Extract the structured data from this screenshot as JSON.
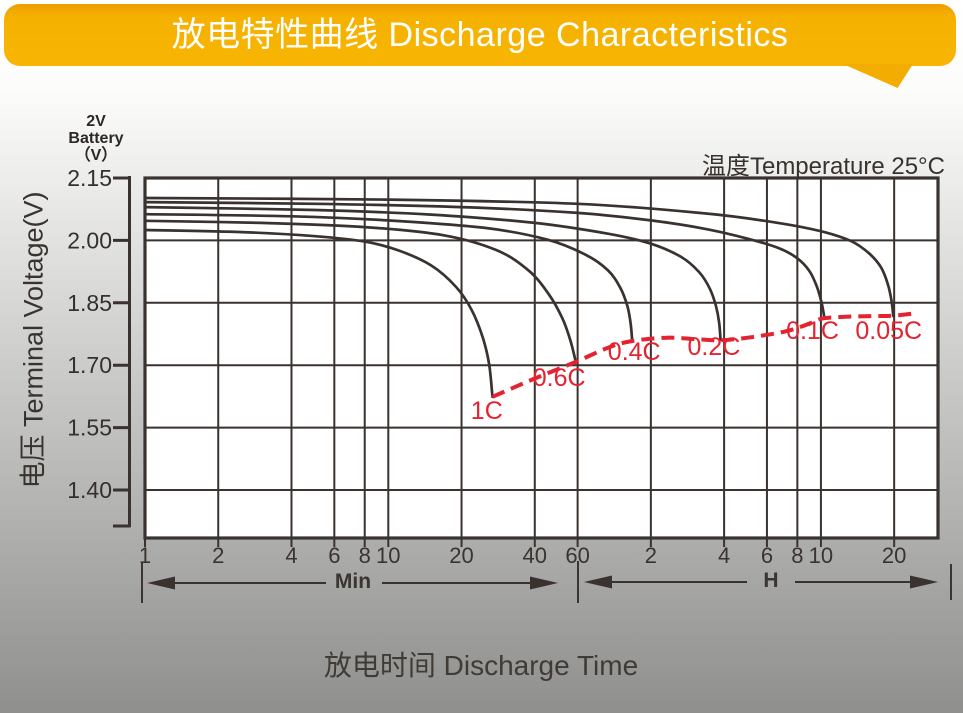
{
  "header": {
    "title": "放电特性曲线 Discharge Characteristics",
    "banner_color": "#f6b100",
    "title_color": "#ffffff"
  },
  "chart": {
    "temperature_note": "温度Temperature 25°C",
    "battery_label": [
      "2V",
      "Battery",
      "（V）"
    ]
  },
  "chart_data": {
    "type": "line",
    "title": "放电特性曲线 Discharge Characteristics",
    "xlabel": "放电时间 Discharge Time",
    "ylabel": "电压 Terminal Voltage(V)",
    "x_scale": "log",
    "grid": true,
    "ylim": [
      1.28,
      2.15
    ],
    "xlim_minutes": [
      1,
      1815
    ],
    "y_ticks": [
      "2.15",
      "2.00",
      "1.85",
      "1.70",
      "1.55",
      "1.40"
    ],
    "y_tick_values": [
      2.15,
      2.0,
      1.85,
      1.7,
      1.55,
      1.4
    ],
    "x_unit_sections": [
      {
        "label": "Min",
        "ticks": [
          "1",
          "2",
          "4",
          "6",
          "8",
          "10",
          "20",
          "40",
          "60"
        ],
        "t_minutes": [
          1,
          2,
          4,
          6,
          8,
          10,
          20,
          40,
          60
        ]
      },
      {
        "label": "H",
        "ticks": [
          "2",
          "4",
          "6",
          "8",
          "10",
          "20"
        ],
        "t_minutes": [
          120,
          240,
          360,
          480,
          600,
          1200
        ]
      }
    ],
    "line_color": "#39322f",
    "eod_color": "#e52230",
    "series": [
      {
        "name": "0.05C",
        "points": [
          [
            1,
            2.102
          ],
          [
            10,
            2.098
          ],
          [
            60,
            2.088
          ],
          [
            200,
            2.065
          ],
          [
            400,
            2.042
          ],
          [
            600,
            2.022
          ],
          [
            800,
            1.998
          ],
          [
            950,
            1.968
          ],
          [
            1060,
            1.935
          ],
          [
            1130,
            1.895
          ],
          [
            1170,
            1.855
          ],
          [
            1190,
            1.818
          ]
        ]
      },
      {
        "name": "0.1C",
        "points": [
          [
            1,
            2.092
          ],
          [
            5,
            2.088
          ],
          [
            20,
            2.08
          ],
          [
            60,
            2.066
          ],
          [
            120,
            2.048
          ],
          [
            200,
            2.028
          ],
          [
            300,
            2.004
          ],
          [
            400,
            1.982
          ],
          [
            480,
            1.957
          ],
          [
            540,
            1.925
          ],
          [
            580,
            1.886
          ],
          [
            605,
            1.848
          ],
          [
            620,
            1.813
          ]
        ]
      },
      {
        "name": "0.2C",
        "points": [
          [
            1,
            2.08
          ],
          [
            5,
            2.073
          ],
          [
            15,
            2.062
          ],
          [
            40,
            2.042
          ],
          [
            80,
            2.016
          ],
          [
            120,
            1.992
          ],
          [
            160,
            1.96
          ],
          [
            190,
            1.923
          ],
          [
            210,
            1.883
          ],
          [
            222,
            1.843
          ],
          [
            229,
            1.803
          ],
          [
            232,
            1.761
          ]
        ]
      },
      {
        "name": "0.4C",
        "points": [
          [
            1,
            2.063
          ],
          [
            4,
            2.058
          ],
          [
            10,
            2.048
          ],
          [
            25,
            2.03
          ],
          [
            45,
            2.002
          ],
          [
            65,
            1.965
          ],
          [
            80,
            1.928
          ],
          [
            90,
            1.885
          ],
          [
            96,
            1.843
          ],
          [
            99,
            1.803
          ],
          [
            100.5,
            1.761
          ]
        ]
      },
      {
        "name": "0.6C",
        "points": [
          [
            1,
            2.047
          ],
          [
            3,
            2.042
          ],
          [
            8,
            2.032
          ],
          [
            17,
            2.012
          ],
          [
            28,
            1.976
          ],
          [
            38,
            1.926
          ],
          [
            46,
            1.868
          ],
          [
            52,
            1.812
          ],
          [
            56,
            1.76
          ],
          [
            59,
            1.708
          ]
        ]
      },
      {
        "name": "1C",
        "points": [
          [
            1,
            2.025
          ],
          [
            2.5,
            2.02
          ],
          [
            5,
            2.01
          ],
          [
            8,
            1.997
          ],
          [
            11,
            1.976
          ],
          [
            15,
            1.94
          ],
          [
            19,
            1.888
          ],
          [
            22,
            1.833
          ],
          [
            24.5,
            1.765
          ],
          [
            26,
            1.7
          ],
          [
            26.8,
            1.624
          ]
        ]
      }
    ],
    "series_labels": [
      {
        "text": "1C",
        "t": 25.4,
        "v": 1.59
      },
      {
        "text": "0.6C",
        "t": 50.4,
        "v": 1.669
      },
      {
        "text": "0.4C",
        "t": 102.5,
        "v": 1.732
      },
      {
        "text": "0.2C",
        "t": 218,
        "v": 1.744
      },
      {
        "text": "0.1C",
        "t": 554,
        "v": 1.782
      },
      {
        "text": "0.05C",
        "t": 1140,
        "v": 1.782
      }
    ],
    "eod_line": {
      "name": "end-of-discharge-voltage-line",
      "style": "dashed",
      "points": [
        [
          26.8,
          1.624
        ],
        [
          40,
          1.668
        ],
        [
          59,
          1.708
        ],
        [
          80,
          1.742
        ],
        [
          100,
          1.758
        ],
        [
          140,
          1.766
        ],
        [
          190,
          1.762
        ],
        [
          232,
          1.76
        ],
        [
          300,
          1.766
        ],
        [
          420,
          1.78
        ],
        [
          500,
          1.793
        ],
        [
          560,
          1.804
        ],
        [
          620,
          1.813
        ],
        [
          800,
          1.817
        ],
        [
          1000,
          1.818
        ],
        [
          1190,
          1.819
        ],
        [
          1430,
          1.824
        ]
      ]
    }
  }
}
